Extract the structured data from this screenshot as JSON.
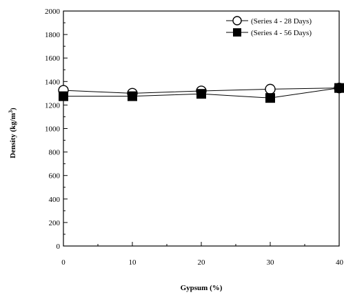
{
  "chart_data": {
    "type": "line",
    "title": "",
    "xlabel": "Gypsum (%)",
    "ylabel": "Density (kg/m",
    "ylabel_sup": "3",
    "ylabel_close": ")",
    "x": [
      0,
      10,
      20,
      30,
      40
    ],
    "xlim": [
      0,
      40
    ],
    "ylim": [
      0,
      2000
    ],
    "x_ticks": [
      0,
      10,
      20,
      30,
      40
    ],
    "x_tick_labels": [
      "0",
      "10",
      "20",
      "30",
      "40"
    ],
    "y_ticks": [
      0,
      200,
      400,
      600,
      800,
      1000,
      1200,
      1400,
      1600,
      1800,
      2000
    ],
    "y_tick_labels": [
      "0",
      "200",
      "400",
      "600",
      "800",
      "1000",
      "1200",
      "1400",
      "1600",
      "1800",
      "2000"
    ],
    "grid": false,
    "legend_position": "top-right",
    "series": [
      {
        "name": "(Series 4 - 28 Days)",
        "marker": "open-circle",
        "color": "#000000",
        "values": [
          1325,
          1300,
          1320,
          1335,
          1345
        ]
      },
      {
        "name": "(Series 4 - 56 Days)",
        "marker": "filled-square",
        "color": "#000000",
        "values": [
          1275,
          1275,
          1295,
          1260,
          1345
        ]
      }
    ]
  }
}
